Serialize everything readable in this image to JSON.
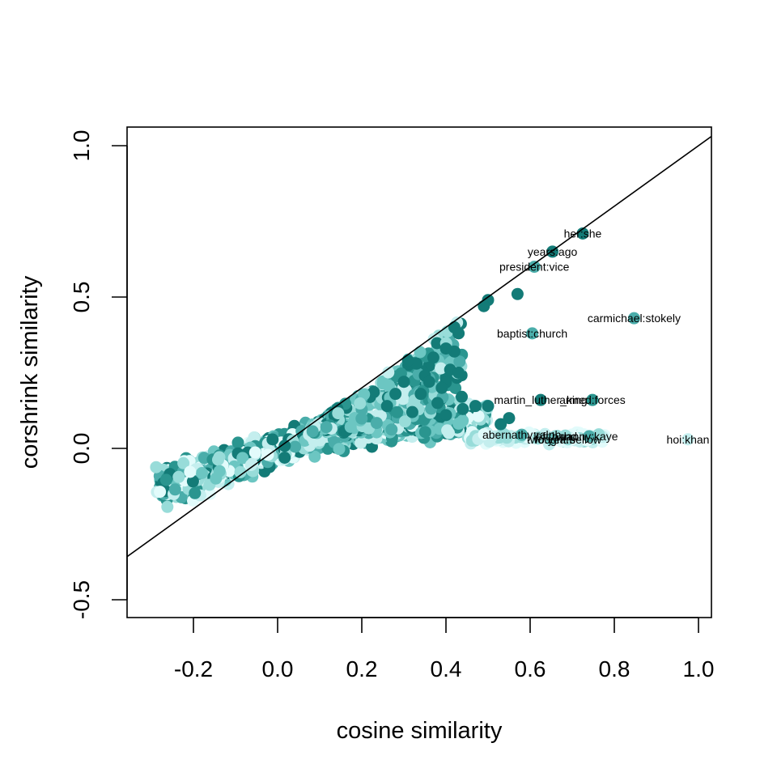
{
  "chart_data": {
    "type": "scatter",
    "title": "",
    "xlabel": "cosine similarity",
    "ylabel": "corshrink similarity",
    "xlim": [
      -0.3,
      1.0
    ],
    "ylim": [
      -0.5,
      1.0
    ],
    "x_ticks": [
      -0.2,
      0.0,
      0.2,
      0.4,
      0.6,
      0.8,
      1.0
    ],
    "x_tick_labels": [
      "-0.2",
      "0.0",
      "0.2",
      "0.4",
      "0.6",
      "0.8",
      "1.0"
    ],
    "y_ticks": [
      -0.5,
      0.0,
      0.5,
      1.0
    ],
    "y_tick_labels": [
      "-0.5",
      "0.0",
      "0.5",
      "1.0"
    ],
    "grid": false,
    "legend": "none",
    "reference_line": {
      "type": "identity",
      "slope": 1,
      "intercept": 0
    },
    "palette": [
      "#137b77",
      "#2a958f",
      "#4aadaa",
      "#6cc6c2",
      "#98dcd9",
      "#c4eeee",
      "#e2fbfb"
    ],
    "labeled_points": [
      {
        "label": "her:she",
        "x": 0.725,
        "y": 0.71,
        "color": "#137b77"
      },
      {
        "label": "years:ago",
        "x": 0.653,
        "y": 0.65,
        "color": "#137b77"
      },
      {
        "label": "president:vice",
        "x": 0.61,
        "y": 0.6,
        "color": "#4aadaa"
      },
      {
        "label": "carmichael:stokely",
        "x": 0.847,
        "y": 0.43,
        "color": "#4aadaa"
      },
      {
        "label": "baptist:church",
        "x": 0.605,
        "y": 0.38,
        "color": "#4aadaa"
      },
      {
        "label": "martin_luther_king",
        "x": 0.625,
        "y": 0.16,
        "color": "#137b77"
      },
      {
        "label": "armed:forces",
        "x": 0.748,
        "y": 0.16,
        "color": "#2a958f"
      },
      {
        "label": "abernathy:ralph",
        "x": 0.58,
        "y": 0.045,
        "color": "#4aadaa"
      },
      {
        "label": "left:hand",
        "x": 0.66,
        "y": 0.04,
        "color": "#98dcd9"
      },
      {
        "label": "two:years",
        "x": 0.65,
        "y": 0.03,
        "color": "#6cc6c2"
      },
      {
        "label": "fought:bellow",
        "x": 0.69,
        "y": 0.03,
        "color": "#98dcd9"
      },
      {
        "label": "danny:kaye",
        "x": 0.74,
        "y": 0.04,
        "color": "#4aadaa"
      },
      {
        "label": "hoi:khan",
        "x": 0.975,
        "y": 0.03,
        "color": "#c4eeee"
      }
    ],
    "highlight_points": [
      {
        "x": 0.42,
        "y": 0.4
      },
      {
        "x": 0.43,
        "y": 0.38
      },
      {
        "x": 0.42,
        "y": 0.32
      },
      {
        "x": 0.4,
        "y": 0.33
      },
      {
        "x": 0.37,
        "y": 0.3
      },
      {
        "x": 0.41,
        "y": 0.26
      },
      {
        "x": 0.43,
        "y": 0.25
      },
      {
        "x": 0.39,
        "y": 0.2
      },
      {
        "x": 0.35,
        "y": 0.24
      },
      {
        "x": 0.33,
        "y": 0.28
      },
      {
        "x": 0.31,
        "y": 0.29
      },
      {
        "x": 0.36,
        "y": 0.22
      },
      {
        "x": 0.57,
        "y": 0.51
      },
      {
        "x": 0.5,
        "y": 0.49
      },
      {
        "x": 0.49,
        "y": 0.47
      },
      {
        "x": 0.38,
        "y": 0.15
      },
      {
        "x": 0.44,
        "y": 0.13
      },
      {
        "x": 0.34,
        "y": 0.18
      },
      {
        "x": 0.3,
        "y": 0.22
      },
      {
        "x": 0.47,
        "y": 0.14
      },
      {
        "x": 0.5,
        "y": 0.14
      },
      {
        "x": 0.55,
        "y": 0.1
      },
      {
        "x": 0.53,
        "y": 0.08
      },
      {
        "x": 0.4,
        "y": 0.11
      },
      {
        "x": 0.28,
        "y": 0.18
      },
      {
        "x": 0.26,
        "y": 0.14
      },
      {
        "x": 0.32,
        "y": 0.12
      }
    ]
  }
}
